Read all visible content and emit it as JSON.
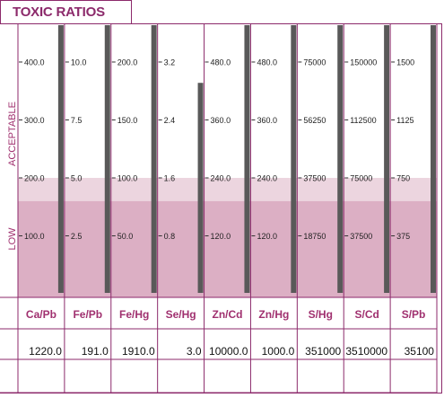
{
  "title": "TOXIC RATIOS",
  "zones": {
    "acceptable_label": "ACCEPTABLE",
    "low_label": "LOW"
  },
  "colors": {
    "accent": "#8c2a6b",
    "low_zone": "#dcafc4",
    "transition_zone": "#ecd5df",
    "bar": "#595959"
  },
  "chart_data": {
    "type": "bar",
    "title": "TOXIC RATIOS",
    "scale_note": "each column has its own scale; tick labels mark 0.5x, 1x, 1.5x and 2x a reference value",
    "categories": [
      "Ca/Pb",
      "Fe/Pb",
      "Fe/Hg",
      "Se/Hg",
      "Zn/Cd",
      "Zn/Hg",
      "S/Hg",
      "S/Cd",
      "S/Pb"
    ],
    "ticks": [
      [
        "400.0",
        "300.0",
        "200.0",
        "100.0"
      ],
      [
        "10.0",
        "7.5",
        "5.0",
        "2.5"
      ],
      [
        "200.0",
        "150.0",
        "100.0",
        "50.0"
      ],
      [
        "3.2",
        "2.4",
        "1.6",
        "0.8"
      ],
      [
        "480.0",
        "360.0",
        "240.0",
        "120.0"
      ],
      [
        "480.0",
        "360.0",
        "240.0",
        "120.0"
      ],
      [
        "75000",
        "56250",
        "37500",
        "18750"
      ],
      [
        "150000",
        "112500",
        "75000",
        "37500"
      ],
      [
        "1500",
        "1125",
        "750",
        "375"
      ]
    ],
    "values": [
      "1220.0",
      "191.0",
      "1910.0",
      "3.0",
      "10000.0",
      "1000.0",
      "351000",
      "3510000",
      "35100"
    ],
    "bar_levels": [
      1,
      1,
      1,
      0.91,
      1,
      1,
      1,
      1,
      1
    ],
    "zones": [
      {
        "name": "ACCEPTABLE",
        "from_fraction": 0.5,
        "to_fraction": 1
      },
      {
        "name": "LOW",
        "from_fraction": 0,
        "to_fraction": 0.4
      }
    ]
  }
}
